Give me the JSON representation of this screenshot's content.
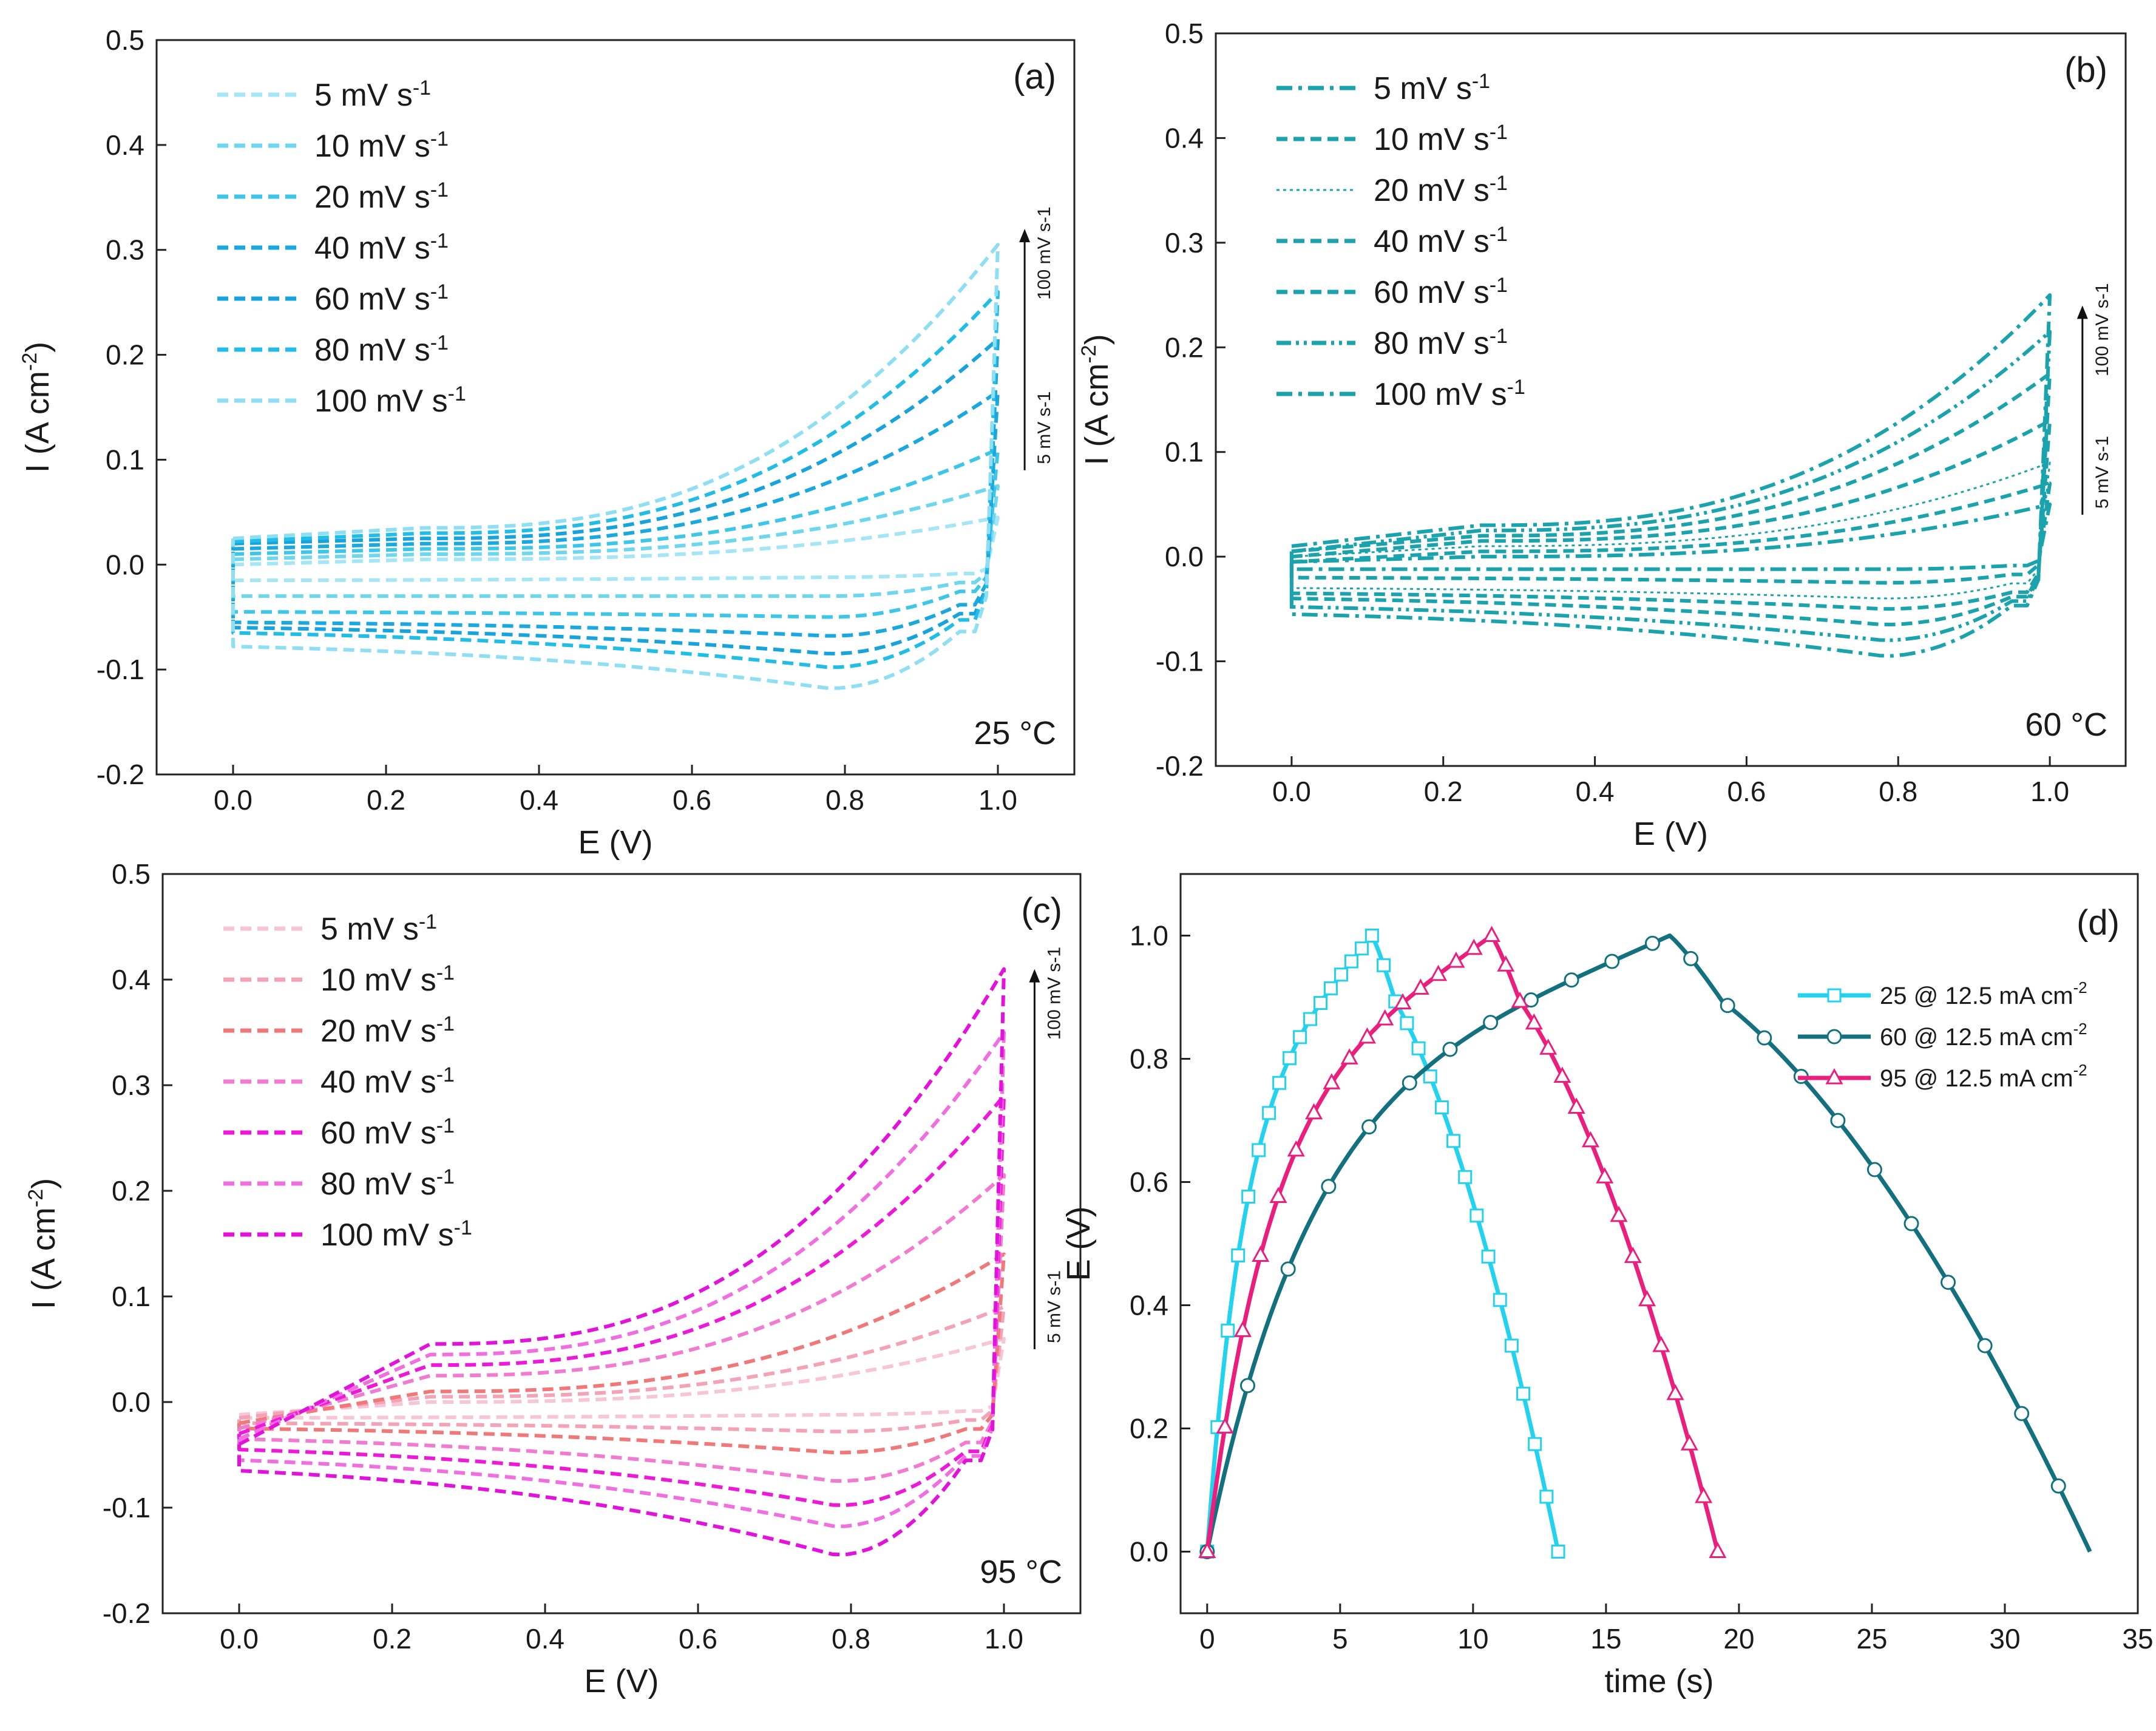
{
  "chart_data": [
    {
      "type": "line",
      "panel": "(a)",
      "temperature_label": "25 °C",
      "xlabel": "E (V)",
      "ylabel": "I (A cm-2)",
      "ylabel_main": "I (A cm",
      "ylabel_sup": "-2",
      "ylabel_close": ")",
      "xlim": [
        -0.1,
        1.1
      ],
      "ylim": [
        -0.2,
        0.5
      ],
      "xticks": [
        "0.0",
        "0.2",
        "0.4",
        "0.6",
        "0.8",
        "1.0"
      ],
      "yticks": [
        "-0.2",
        "-0.1",
        "0.0",
        "0.1",
        "0.2",
        "0.3",
        "0.4",
        "0.5"
      ],
      "arrow_low": "5 mV s-1",
      "arrow_high": "100 mV s-1",
      "legend_position": "top-left",
      "series": [
        {
          "name": "5 mV s-1",
          "label": "5 mV s",
          "color": "#a4e6f5",
          "dash": "dash",
          "ip": 0.045,
          "ic": -0.01,
          "c0": 0.0,
          "r0": -0.015,
          "mid": 0.005,
          "peak": -0.012
        },
        {
          "name": "10 mV s-1",
          "label": "10 mV s",
          "color": "#6fd6ef",
          "dash": "dash",
          "ip": 0.075,
          "ic": -0.02,
          "c0": 0.005,
          "r0": -0.03,
          "mid": 0.01,
          "peak": -0.03
        },
        {
          "name": "20 mV s-1",
          "label": "20 mV s",
          "color": "#3ec6ea",
          "dash": "dash",
          "ip": 0.11,
          "ic": -0.03,
          "c0": 0.01,
          "r0": -0.045,
          "mid": 0.015,
          "peak": -0.05
        },
        {
          "name": "40 mV s-1",
          "label": "40 mV s",
          "color": "#1aa8de",
          "dash": "dash",
          "ip": 0.165,
          "ic": -0.045,
          "c0": 0.015,
          "r0": -0.055,
          "mid": 0.02,
          "peak": -0.068
        },
        {
          "name": "60 mV s-1",
          "label": "60 mV s",
          "color": "#19a3dc",
          "dash": "dash",
          "ip": 0.215,
          "ic": -0.055,
          "c0": 0.02,
          "r0": -0.06,
          "mid": 0.025,
          "peak": -0.085
        },
        {
          "name": "80 mV s-1",
          "label": "80 mV s",
          "color": "#21bde6",
          "dash": "dash",
          "ip": 0.26,
          "ic": -0.062,
          "c0": 0.022,
          "r0": -0.065,
          "mid": 0.03,
          "peak": -0.098
        },
        {
          "name": "100 mV s-1",
          "label": "100 mV s",
          "color": "#8fdff4",
          "dash": "dash",
          "ip": 0.305,
          "ic": -0.075,
          "c0": 0.025,
          "r0": -0.078,
          "mid": 0.035,
          "peak": -0.118
        }
      ]
    },
    {
      "type": "line",
      "panel": "(b)",
      "temperature_label": "60 °C",
      "xlabel": "E (V)",
      "ylabel": "I (A cm-2)",
      "ylabel_main": "I (A cm",
      "ylabel_sup": "-2",
      "ylabel_close": ")",
      "xlim": [
        -0.1,
        1.1
      ],
      "ylim": [
        -0.2,
        0.5
      ],
      "xticks": [
        "0.0",
        "0.2",
        "0.4",
        "0.6",
        "0.8",
        "1.0"
      ],
      "yticks": [
        "-0.2",
        "-0.1",
        "0.0",
        "0.1",
        "0.2",
        "0.3",
        "0.4",
        "0.5"
      ],
      "arrow_low": "5 mV s-1",
      "arrow_high": "100 mV s-1",
      "legend_position": "top-left",
      "series": [
        {
          "name": "5 mV s-1",
          "label": "5 mV s",
          "color": "#1aa3ad",
          "dash": "dashdot",
          "ip": 0.05,
          "ic": -0.01,
          "c0": -0.005,
          "r0": -0.012,
          "mid": 0.0,
          "peak": -0.012
        },
        {
          "name": "10 mV s-1",
          "label": "10 mV s",
          "color": "#1aa3ad",
          "dash": "dash",
          "ip": 0.07,
          "ic": -0.02,
          "c0": -0.005,
          "r0": -0.02,
          "mid": 0.005,
          "peak": -0.025
        },
        {
          "name": "20 mV s-1",
          "label": "20 mV s",
          "color": "#1aa3ad",
          "dash": "dot",
          "ip": 0.09,
          "ic": -0.03,
          "c0": 0.0,
          "r0": -0.03,
          "mid": 0.01,
          "peak": -0.04
        },
        {
          "name": "40 mV s-1",
          "label": "40 mV s",
          "color": "#1aa3ad",
          "dash": "dash",
          "ip": 0.13,
          "ic": -0.04,
          "c0": 0.0,
          "r0": -0.035,
          "mid": 0.015,
          "peak": -0.05
        },
        {
          "name": "60 mV s-1",
          "label": "60 mV s",
          "color": "#1aa3ad",
          "dash": "dash",
          "ip": 0.175,
          "ic": -0.045,
          "c0": 0.005,
          "r0": -0.04,
          "mid": 0.02,
          "peak": -0.065
        },
        {
          "name": "80 mV s-1",
          "label": "80 mV s",
          "color": "#1aa3ad",
          "dash": "dashdotdot",
          "ip": 0.215,
          "ic": -0.05,
          "c0": 0.005,
          "r0": -0.048,
          "mid": 0.025,
          "peak": -0.08
        },
        {
          "name": "100 mV s-1",
          "label": "100 mV s",
          "color": "#1aa3ad",
          "dash": "dashdot",
          "ip": 0.25,
          "ic": -0.055,
          "c0": 0.01,
          "r0": -0.055,
          "mid": 0.03,
          "peak": -0.095
        }
      ]
    },
    {
      "type": "line",
      "panel": "(c)",
      "temperature_label": "95 °C",
      "xlabel": "E (V)",
      "ylabel": "I (A cm-2)",
      "ylabel_main": "I (A cm",
      "ylabel_sup": "-2",
      "ylabel_close": ")",
      "xlim": [
        -0.1,
        1.1
      ],
      "ylim": [
        -0.2,
        0.5
      ],
      "xticks": [
        "0.0",
        "0.2",
        "0.4",
        "0.6",
        "0.8",
        "1.0"
      ],
      "yticks": [
        "-0.2",
        "-0.1",
        "0.0",
        "0.1",
        "0.2",
        "0.3",
        "0.4",
        "0.5"
      ],
      "arrow_low": "5 mV s-1",
      "arrow_high": "100 mV s-1",
      "legend_position": "top-left",
      "series": [
        {
          "name": "5 mV s-1",
          "label": "5 mV s",
          "color": "#f7c6d6",
          "dash": "dash",
          "ip": 0.06,
          "ic": -0.01,
          "c0": -0.012,
          "r0": -0.015,
          "mid": 0.0,
          "peak": -0.012
        },
        {
          "name": "10 mV s-1",
          "label": "10 mV s",
          "color": "#f4a3b6",
          "dash": "dash",
          "ip": 0.09,
          "ic": -0.02,
          "c0": -0.015,
          "r0": -0.02,
          "mid": 0.005,
          "peak": -0.028
        },
        {
          "name": "20 mV s-1",
          "label": "20 mV s",
          "color": "#f07878",
          "dash": "dash",
          "ip": 0.14,
          "ic": -0.03,
          "c0": -0.02,
          "r0": -0.025,
          "mid": 0.01,
          "peak": -0.048
        },
        {
          "name": "40 mV s-1",
          "label": "40 mV s",
          "color": "#f27bd2",
          "dash": "dash",
          "ip": 0.215,
          "ic": -0.045,
          "c0": -0.025,
          "r0": -0.035,
          "mid": 0.025,
          "peak": -0.075
        },
        {
          "name": "60 mV s-1",
          "label": "60 mV s",
          "color": "#ee18d8",
          "dash": "dash",
          "ip": 0.29,
          "ic": -0.055,
          "c0": -0.03,
          "r0": -0.045,
          "mid": 0.035,
          "peak": -0.098
        },
        {
          "name": "80 mV s-1",
          "label": "80 mV s",
          "color": "#f06ee0",
          "dash": "dash",
          "ip": 0.35,
          "ic": -0.06,
          "c0": -0.035,
          "r0": -0.055,
          "mid": 0.045,
          "peak": -0.118
        },
        {
          "name": "100 mV s-1",
          "label": "100 mV s",
          "color": "#e212dc",
          "dash": "dash",
          "ip": 0.41,
          "ic": -0.065,
          "c0": -0.04,
          "r0": -0.065,
          "mid": 0.055,
          "peak": -0.145
        }
      ]
    },
    {
      "type": "line",
      "panel": "(d)",
      "xlabel": "time (s)",
      "ylabel": "E (V)",
      "xlim": [
        -1,
        35
      ],
      "ylim": [
        -0.1,
        1.1
      ],
      "xticks": [
        "0",
        "5",
        "10",
        "15",
        "20",
        "25",
        "30",
        "35"
      ],
      "yticks": [
        "0.0",
        "0.2",
        "0.4",
        "0.6",
        "0.8",
        "1.0"
      ],
      "legend_position": "top-right",
      "series": [
        {
          "name": "25 @ 12.5 mA cm-2",
          "label": "25 @ 12.5 mA cm",
          "color": "#22d2ee",
          "marker": "square",
          "t_peak": 6.2,
          "t_end": 13.2
        },
        {
          "name": "60 @ 12.5 mA cm-2",
          "label": "60 @ 12.5 mA cm",
          "color": "#13707e",
          "marker": "circle",
          "t_peak": 17.4,
          "t_end": 33.2
        },
        {
          "name": "95 @ 12.5 mA cm-2",
          "label": "95 @ 12.5 mA cm",
          "color": "#ea1e7c",
          "marker": "triangle",
          "t_peak": 10.7,
          "t_end": 19.2
        }
      ]
    }
  ],
  "units": {
    "superscript_rate": "-1",
    "superscript_area": "-2"
  }
}
